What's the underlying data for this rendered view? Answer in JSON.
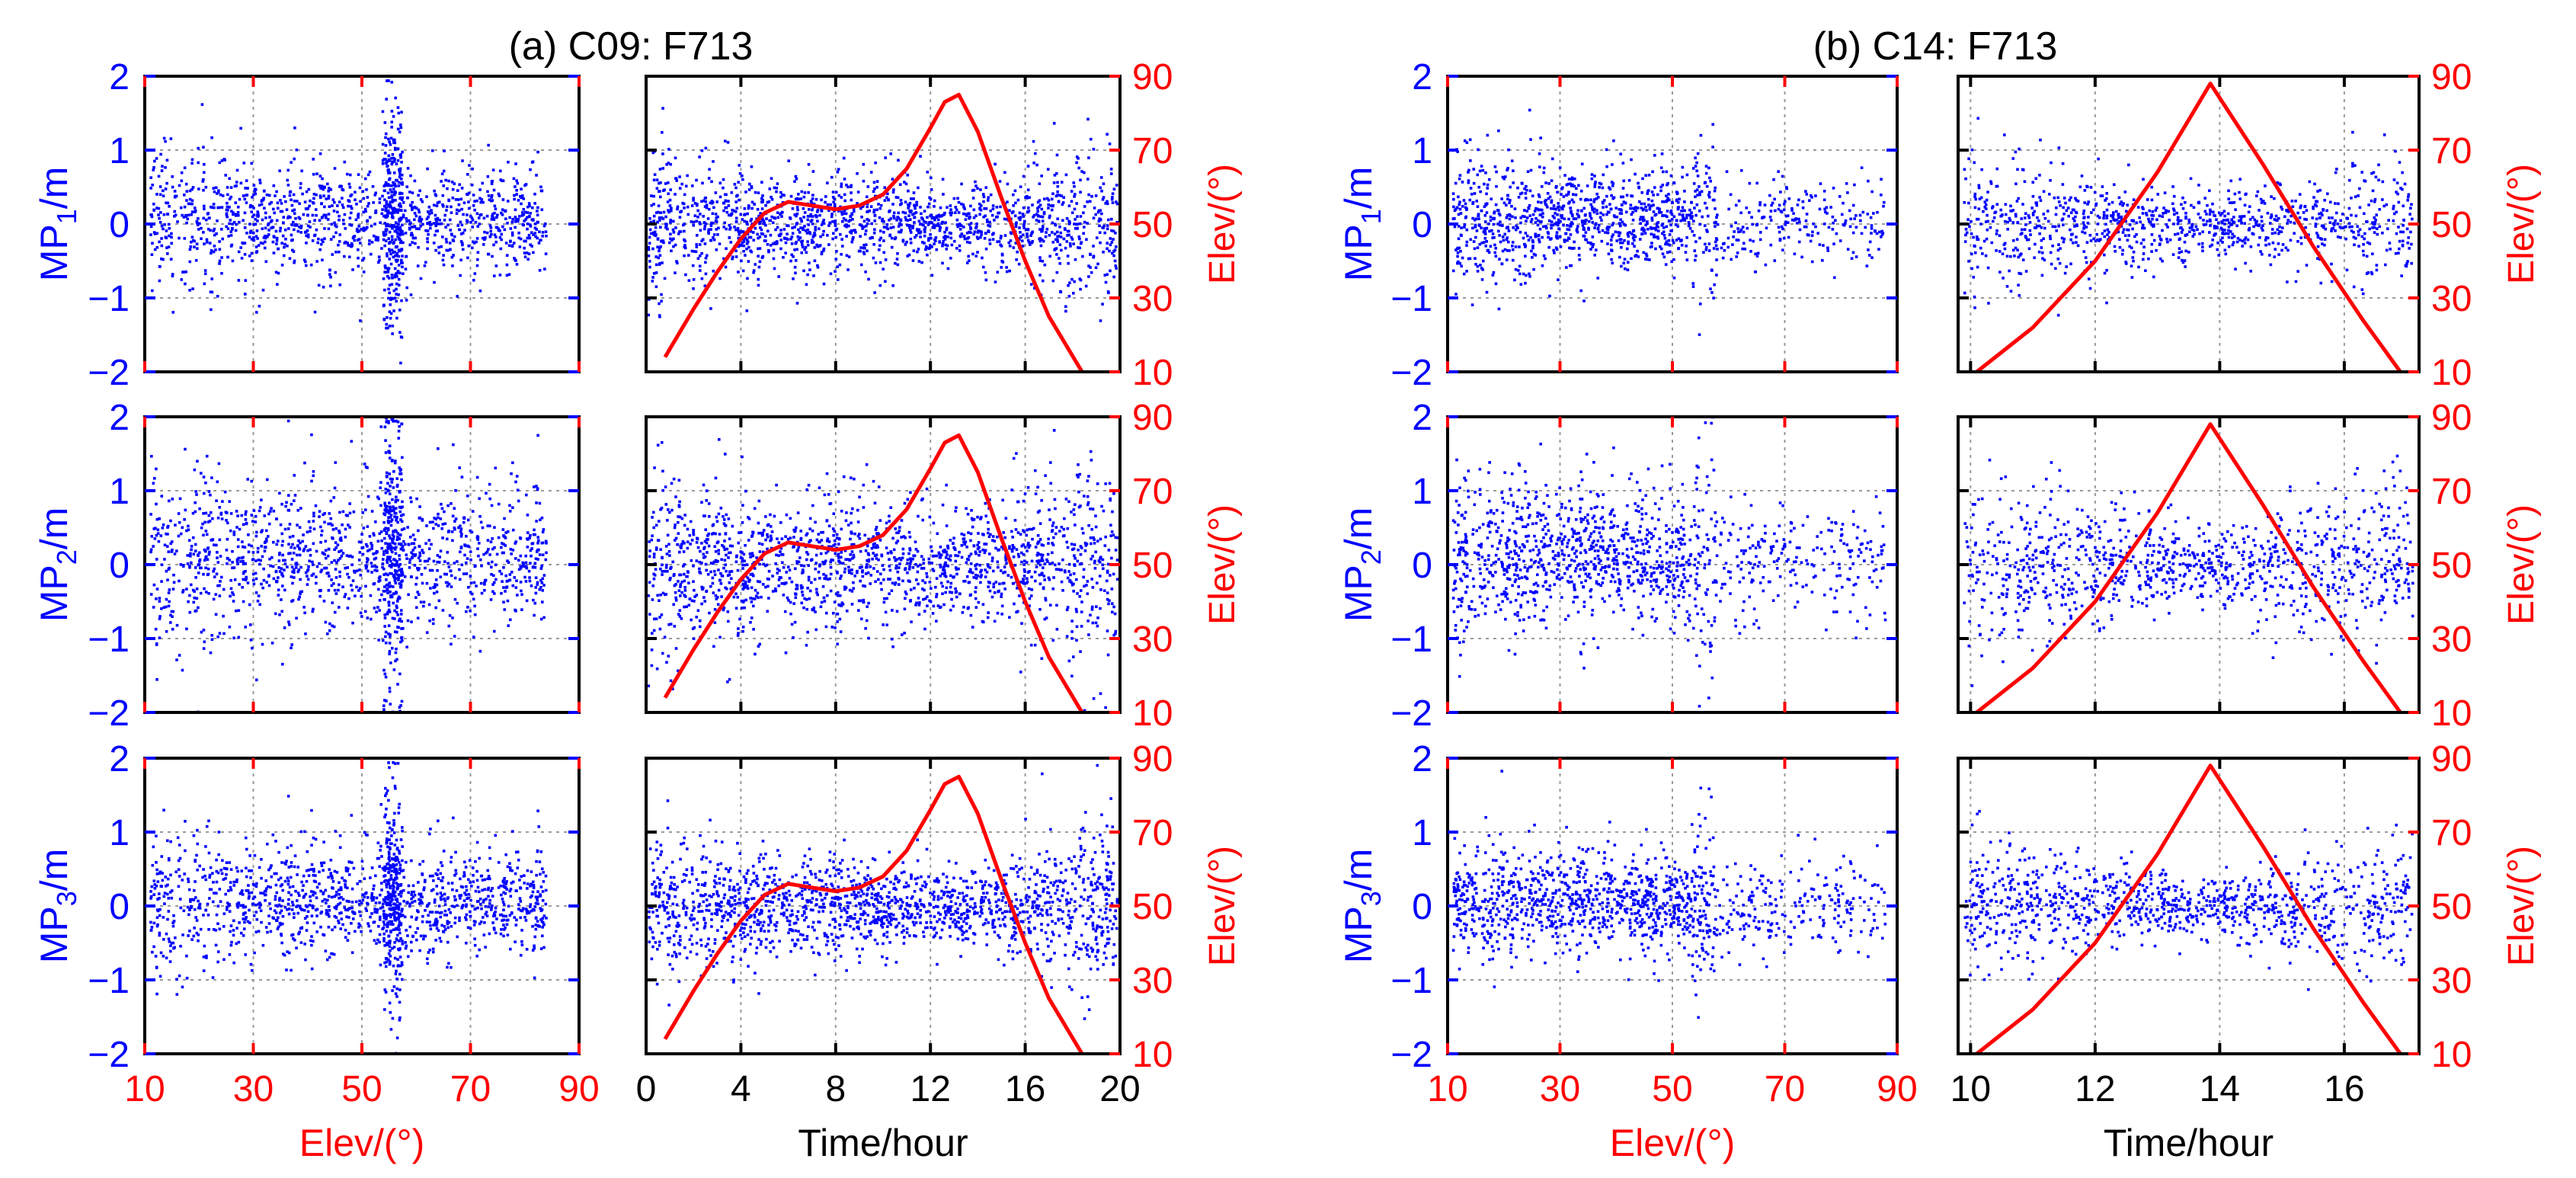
{
  "figure": {
    "description_groups": [
      "(a) C09: F713",
      "(b) C14: F713"
    ]
  },
  "chart_data": [
    {
      "group": "a",
      "title": "(a) C09: F713",
      "elev_xlabel": "Elev/(°)",
      "time_xlabel": "Time/hour",
      "elev_right_label": "Elev/(°)",
      "elev_xticks": [
        "10",
        "30",
        "50",
        "70",
        "90"
      ],
      "elev_xlim": [
        10,
        90
      ],
      "time_xticks": [
        "0",
        "4",
        "8",
        "12",
        "16",
        "20"
      ],
      "time_xlim": [
        0,
        20
      ],
      "mp_yticks": [
        "2",
        "1",
        "0",
        "−1",
        "−2"
      ],
      "mp_ylim": [
        -2,
        2
      ],
      "elev_yticks": [
        "90",
        "70",
        "50",
        "30",
        "10"
      ],
      "elev_ylim": [
        10,
        90
      ],
      "rows": [
        {
          "ylabel_main": "MP",
          "ylabel_sub": "1",
          "ylabel_tail": "/m",
          "type": "scatter",
          "series": "MP1 vs elevation / time",
          "spread": 0.45
        },
        {
          "ylabel_main": "MP",
          "ylabel_sub": "2",
          "ylabel_tail": "/m",
          "type": "scatter",
          "series": "MP2 vs elevation / time",
          "spread": 0.6
        },
        {
          "ylabel_main": "MP",
          "ylabel_sub": "3",
          "ylabel_tail": "/m",
          "type": "scatter",
          "series": "MP3 vs elevation / time",
          "spread": 0.45
        }
      ],
      "elevation_curve": {
        "type": "line",
        "color": "#ff0000",
        "x_hours": [
          0.8,
          2,
          3,
          4,
          5,
          6,
          7,
          8,
          9,
          10,
          11,
          12,
          12.6,
          13.2,
          14,
          15,
          16,
          17,
          18.4
        ],
        "y_deg": [
          14,
          27,
          37,
          46,
          53,
          56,
          55,
          54,
          55,
          58,
          65,
          76,
          83,
          85,
          75,
          57,
          40,
          25,
          10
        ]
      }
    },
    {
      "group": "b",
      "title": "(b) C14: F713",
      "elev_xlabel": "Elev/(°)",
      "time_xlabel": "Time/hour",
      "elev_right_label": "Elev/(°)",
      "elev_xticks": [
        "10",
        "30",
        "50",
        "70",
        "90"
      ],
      "elev_xlim": [
        10,
        90
      ],
      "time_xticks": [
        "10",
        "12",
        "14",
        "16"
      ],
      "time_xlim": [
        9.8,
        17.2
      ],
      "mp_yticks": [
        "2",
        "1",
        "0",
        "−1",
        "−2"
      ],
      "mp_ylim": [
        -2,
        2
      ],
      "elev_yticks": [
        "90",
        "70",
        "50",
        "30",
        "10"
      ],
      "elev_ylim": [
        10,
        90
      ],
      "rows": [
        {
          "ylabel_main": "MP",
          "ylabel_sub": "1",
          "ylabel_tail": "/m",
          "type": "scatter",
          "series": "MP1 vs elevation / time",
          "spread": 0.4
        },
        {
          "ylabel_main": "MP",
          "ylabel_sub": "2",
          "ylabel_tail": "/m",
          "type": "scatter",
          "series": "MP2 vs elevation / time",
          "spread": 0.55
        },
        {
          "ylabel_main": "MP",
          "ylabel_sub": "3",
          "ylabel_tail": "/m",
          "type": "scatter",
          "series": "MP3 vs elevation / time",
          "spread": 0.4
        }
      ],
      "elevation_curve": {
        "type": "line",
        "color": "#ff0000",
        "x_hours": [
          10.1,
          11,
          12,
          13,
          13.85,
          14.7,
          15.5,
          16.3,
          16.9
        ],
        "y_deg": [
          10,
          22,
          40,
          64,
          88,
          66,
          44,
          24,
          10
        ]
      }
    }
  ],
  "colors": {
    "scatter": "#0000ff",
    "elev_axis": "#ff0000",
    "mp_axis": "#0000ff",
    "text": "#000000",
    "grid": "#9a9a9a"
  }
}
